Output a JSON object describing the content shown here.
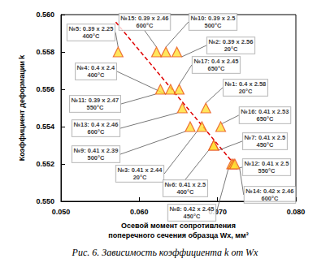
{
  "chart_data": {
    "type": "scatter",
    "title": "Рис. 6. Зависимость коэффициента k от Wx",
    "x_label": "Осевой момент сопротивления\nпоперечного сечения образца Wx, мм³",
    "y_label": "Коэффициент деформации k",
    "xlim": [
      0.05,
      0.08
    ],
    "xticks": [
      {
        "value": 0.05,
        "label": "0.050"
      },
      {
        "value": 0.06,
        "label": "0.060"
      },
      {
        "value": 0.07,
        "label": "0.070"
      },
      {
        "value": 0.08,
        "label": "0.080"
      }
    ],
    "ylim": [
      0.55,
      0.56
    ],
    "yticks": [
      {
        "value": 0.55,
        "label": "0.550"
      },
      {
        "value": 0.552,
        "label": "0.552"
      },
      {
        "value": 0.554,
        "label": "0.554"
      },
      {
        "value": 0.556,
        "label": "0.556"
      },
      {
        "value": 0.558,
        "label": "0.558"
      },
      {
        "value": 0.56,
        "label": "0.560"
      }
    ],
    "grid": false,
    "series": [
      {
        "type": "scatter",
        "color": "#ffe033",
        "marker": "triangle",
        "x": [
          0.0573,
          0.0622,
          0.0634,
          0.0648,
          0.0627,
          0.064,
          0.0651,
          0.0655,
          0.0685,
          0.0665,
          0.068,
          0.0704,
          0.0695,
          0.0695,
          0.0718,
          0.072,
          0.0722
        ],
        "values": [
          0.558,
          0.558,
          0.558,
          0.558,
          0.556,
          0.556,
          0.556,
          0.555,
          0.555,
          0.554,
          0.554,
          0.554,
          0.553,
          0.553,
          0.552,
          0.552,
          0.552
        ],
        "labels": [
          "№5: 0.39 x 2.25\n400°C",
          "№15: 0.39 x 2.46\n600°C",
          "№10: 0.39 x 2.5\n500°C",
          "№2: 0.39 x 2.56\n20°C",
          "№11: 0.39 x 2.47\n550°C",
          "№4: 0.4 x 2.4\n400°C",
          "№17: 0.4 x 2.45\n650°C",
          "№13: 0.4 x 2.46\n600°C",
          "№1: 0.4 x 2.58\n20°C",
          "№9: 0.41 x 2.39\n500°C",
          "№3: 0.41 x 2.44\n20°C",
          "№16: 0.41 x 2.53\n650°C",
          "№7: 0.41 x 2.5\n450°C",
          "№6: 0.41 x 2.5\n400°C",
          "№12: 0.41 x 2.5\n550°C",
          "№8: 0.42 x 2.45\n450°C",
          "№14: 0.42 x 2.46\n600°C"
        ]
      },
      {
        "type": "line",
        "color": "#e00000",
        "line_style": "dashed",
        "x": [
          0.057,
          0.0725
        ],
        "values": [
          0.5596,
          0.5518
        ]
      }
    ]
  }
}
